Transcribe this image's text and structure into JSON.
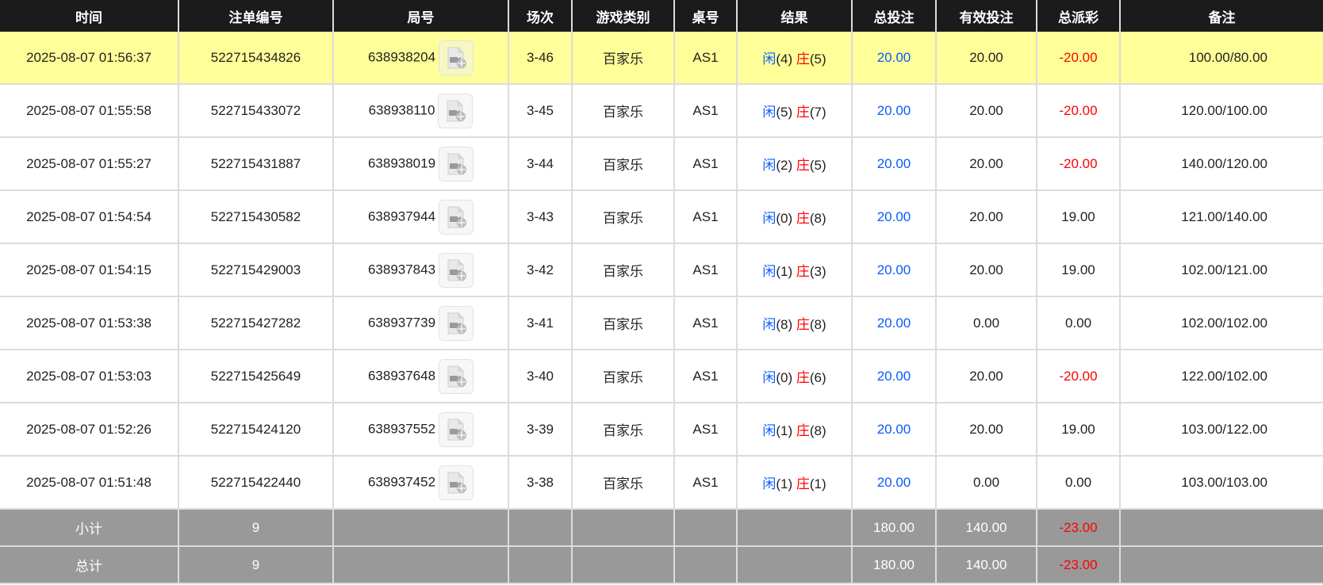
{
  "columns": [
    "时间",
    "注单编号",
    "局号",
    "场次",
    "游戏类别",
    "桌号",
    "结果",
    "总投注",
    "有效投注",
    "总派彩",
    "备注"
  ],
  "colors": {
    "header_bg": "#1b1b1b",
    "highlight_row": "#ffff99",
    "footer_bg": "#999999",
    "player": "#0a5bff",
    "banker": "#ff0000",
    "negative": "#ff0000"
  },
  "rows": [
    {
      "time": "2025-08-07 01:56:37",
      "bet_id": "522715434826",
      "round": "638938204",
      "shoe": "3-46",
      "game": "百家乐",
      "table": "AS1",
      "player_label": "闲",
      "player_score": "(4)",
      "banker_label": "庄",
      "banker_score": "(5)",
      "total_bet": "20.00",
      "valid_bet": "20.00",
      "payout": "-20.00",
      "payout_negative": true,
      "remark": "100.00/80.00",
      "highlighted": true
    },
    {
      "time": "2025-08-07 01:55:58",
      "bet_id": "522715433072",
      "round": "638938110",
      "shoe": "3-45",
      "game": "百家乐",
      "table": "AS1",
      "player_label": "闲",
      "player_score": "(5)",
      "banker_label": "庄",
      "banker_score": "(7)",
      "total_bet": "20.00",
      "valid_bet": "20.00",
      "payout": "-20.00",
      "payout_negative": true,
      "remark": "120.00/100.00"
    },
    {
      "time": "2025-08-07 01:55:27",
      "bet_id": "522715431887",
      "round": "638938019",
      "shoe": "3-44",
      "game": "百家乐",
      "table": "AS1",
      "player_label": "闲",
      "player_score": "(2)",
      "banker_label": "庄",
      "banker_score": "(5)",
      "total_bet": "20.00",
      "valid_bet": "20.00",
      "payout": "-20.00",
      "payout_negative": true,
      "remark": "140.00/120.00"
    },
    {
      "time": "2025-08-07 01:54:54",
      "bet_id": "522715430582",
      "round": "638937944",
      "shoe": "3-43",
      "game": "百家乐",
      "table": "AS1",
      "player_label": "闲",
      "player_score": "(0)",
      "banker_label": "庄",
      "banker_score": "(8)",
      "total_bet": "20.00",
      "valid_bet": "20.00",
      "payout": "19.00",
      "payout_negative": false,
      "remark": "121.00/140.00"
    },
    {
      "time": "2025-08-07 01:54:15",
      "bet_id": "522715429003",
      "round": "638937843",
      "shoe": "3-42",
      "game": "百家乐",
      "table": "AS1",
      "player_label": "闲",
      "player_score": "(1)",
      "banker_label": "庄",
      "banker_score": "(3)",
      "total_bet": "20.00",
      "valid_bet": "20.00",
      "payout": "19.00",
      "payout_negative": false,
      "remark": "102.00/121.00"
    },
    {
      "time": "2025-08-07 01:53:38",
      "bet_id": "522715427282",
      "round": "638937739",
      "shoe": "3-41",
      "game": "百家乐",
      "table": "AS1",
      "player_label": "闲",
      "player_score": "(8)",
      "banker_label": "庄",
      "banker_score": "(8)",
      "total_bet": "20.00",
      "valid_bet": "0.00",
      "payout": "0.00",
      "payout_negative": false,
      "remark": "102.00/102.00"
    },
    {
      "time": "2025-08-07 01:53:03",
      "bet_id": "522715425649",
      "round": "638937648",
      "shoe": "3-40",
      "game": "百家乐",
      "table": "AS1",
      "player_label": "闲",
      "player_score": "(0)",
      "banker_label": "庄",
      "banker_score": "(6)",
      "total_bet": "20.00",
      "valid_bet": "20.00",
      "payout": "-20.00",
      "payout_negative": true,
      "remark": "122.00/102.00"
    },
    {
      "time": "2025-08-07 01:52:26",
      "bet_id": "522715424120",
      "round": "638937552",
      "shoe": "3-39",
      "game": "百家乐",
      "table": "AS1",
      "player_label": "闲",
      "player_score": "(1)",
      "banker_label": "庄",
      "banker_score": "(8)",
      "total_bet": "20.00",
      "valid_bet": "20.00",
      "payout": "19.00",
      "payout_negative": false,
      "remark": "103.00/122.00"
    },
    {
      "time": "2025-08-07 01:51:48",
      "bet_id": "522715422440",
      "round": "638937452",
      "shoe": "3-38",
      "game": "百家乐",
      "table": "AS1",
      "player_label": "闲",
      "player_score": "(1)",
      "banker_label": "庄",
      "banker_score": "(1)",
      "total_bet": "20.00",
      "valid_bet": "0.00",
      "payout": "0.00",
      "payout_negative": false,
      "remark": "103.00/103.00"
    }
  ],
  "row_icon": "video-replay-icon",
  "footer": [
    {
      "label": "小计",
      "count": "9",
      "total_bet": "180.00",
      "valid_bet": "140.00",
      "payout": "-23.00"
    },
    {
      "label": "总计",
      "count": "9",
      "total_bet": "180.00",
      "valid_bet": "140.00",
      "payout": "-23.00"
    }
  ]
}
